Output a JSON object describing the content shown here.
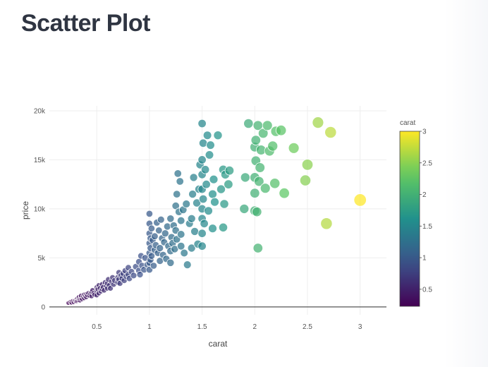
{
  "page": {
    "title": "Scatter Plot"
  },
  "chart_data": {
    "type": "scatter",
    "title": "",
    "xlabel": "carat",
    "ylabel": "price",
    "xlim": [
      0.05,
      3.25
    ],
    "ylim": [
      -800,
      20500
    ],
    "x_ticks": [
      0.5,
      1,
      1.5,
      2,
      2.5,
      3
    ],
    "x_tick_labels": [
      "0.5",
      "1",
      "1.5",
      "2",
      "2.5",
      "3"
    ],
    "y_ticks": [
      0,
      5000,
      10000,
      15000,
      20000
    ],
    "y_tick_labels": [
      "0",
      "5k",
      "10k",
      "15k",
      "20k"
    ],
    "grid": true,
    "color_by": "carat",
    "size_by": "carat",
    "colorscale": "viridis",
    "colorscale_colors": [
      "#440154",
      "#3b528b",
      "#21918c",
      "#5ec962",
      "#fde725"
    ],
    "colorbar": {
      "title": "carat",
      "range": [
        0.23,
        3
      ],
      "ticks": [
        0.5,
        1,
        1.5,
        2,
        2.5,
        3
      ],
      "tick_labels": [
        "0.5",
        "1",
        "1.5",
        "2",
        "2.5",
        "3"
      ]
    },
    "marker_opacity": 0.72,
    "marker_line_color": "#ffffff",
    "points": [
      [
        0.23,
        400
      ],
      [
        0.25,
        520
      ],
      [
        0.26,
        430
      ],
      [
        0.27,
        600
      ],
      [
        0.28,
        480
      ],
      [
        0.29,
        650
      ],
      [
        0.3,
        560
      ],
      [
        0.3,
        720
      ],
      [
        0.31,
        820
      ],
      [
        0.31,
        600
      ],
      [
        0.32,
        700
      ],
      [
        0.32,
        900
      ],
      [
        0.33,
        780
      ],
      [
        0.33,
        1000
      ],
      [
        0.34,
        650
      ],
      [
        0.34,
        880
      ],
      [
        0.35,
        950
      ],
      [
        0.35,
        1150
      ],
      [
        0.36,
        800
      ],
      [
        0.37,
        1050
      ],
      [
        0.38,
        1250
      ],
      [
        0.38,
        900
      ],
      [
        0.39,
        1100
      ],
      [
        0.4,
        1300
      ],
      [
        0.4,
        1000
      ],
      [
        0.41,
        1200
      ],
      [
        0.42,
        1400
      ],
      [
        0.43,
        1150
      ],
      [
        0.44,
        1350
      ],
      [
        0.45,
        1500
      ],
      [
        0.45,
        1100
      ],
      [
        0.46,
        1700
      ],
      [
        0.47,
        1400
      ],
      [
        0.48,
        1250
      ],
      [
        0.5,
        1600
      ],
      [
        0.5,
        2000
      ],
      [
        0.5,
        1200
      ],
      [
        0.51,
        1800
      ],
      [
        0.52,
        2200
      ],
      [
        0.52,
        1400
      ],
      [
        0.53,
        1900
      ],
      [
        0.54,
        1600
      ],
      [
        0.55,
        2300
      ],
      [
        0.55,
        1800
      ],
      [
        0.56,
        2000
      ],
      [
        0.57,
        1700
      ],
      [
        0.58,
        2500
      ],
      [
        0.59,
        2100
      ],
      [
        0.6,
        1900
      ],
      [
        0.6,
        2400
      ],
      [
        0.61,
        2800
      ],
      [
        0.62,
        2200
      ],
      [
        0.63,
        1900
      ],
      [
        0.64,
        2600
      ],
      [
        0.65,
        3000
      ],
      [
        0.66,
        2300
      ],
      [
        0.67,
        2700
      ],
      [
        0.7,
        2500
      ],
      [
        0.7,
        3000
      ],
      [
        0.71,
        2800
      ],
      [
        0.71,
        3500
      ],
      [
        0.72,
        2400
      ],
      [
        0.73,
        3200
      ],
      [
        0.74,
        2900
      ],
      [
        0.75,
        3400
      ],
      [
        0.76,
        2700
      ],
      [
        0.77,
        3700
      ],
      [
        0.78,
        3100
      ],
      [
        0.8,
        3300
      ],
      [
        0.8,
        4000
      ],
      [
        0.81,
        2900
      ],
      [
        0.83,
        3600
      ],
      [
        0.85,
        3200
      ],
      [
        0.87,
        4100
      ],
      [
        0.9,
        3700
      ],
      [
        0.9,
        4600
      ],
      [
        0.91,
        3300
      ],
      [
        0.92,
        5200
      ],
      [
        0.93,
        4200
      ],
      [
        0.95,
        3800
      ],
      [
        0.96,
        5000
      ],
      [
        0.98,
        4300
      ],
      [
        1.0,
        4500
      ],
      [
        1.0,
        5500
      ],
      [
        1.0,
        6500
      ],
      [
        1.0,
        7500
      ],
      [
        1.0,
        8500
      ],
      [
        1.0,
        9500
      ],
      [
        1.0,
        3800
      ],
      [
        1.01,
        4800
      ],
      [
        1.01,
        6000
      ],
      [
        1.01,
        7000
      ],
      [
        1.02,
        5200
      ],
      [
        1.02,
        8000
      ],
      [
        1.03,
        6800
      ],
      [
        1.04,
        4200
      ],
      [
        1.05,
        5800
      ],
      [
        1.05,
        7200
      ],
      [
        1.06,
        6300
      ],
      [
        1.07,
        8600
      ],
      [
        1.08,
        5500
      ],
      [
        1.09,
        7800
      ],
      [
        1.1,
        6000
      ],
      [
        1.1,
        4700
      ],
      [
        1.11,
        8900
      ],
      [
        1.12,
        7000
      ],
      [
        1.13,
        5300
      ],
      [
        1.14,
        6600
      ],
      [
        1.15,
        7500
      ],
      [
        1.16,
        4900
      ],
      [
        1.17,
        8200
      ],
      [
        1.18,
        6200
      ],
      [
        1.2,
        5700
      ],
      [
        1.2,
        9000
      ],
      [
        1.2,
        4500
      ],
      [
        1.21,
        7100
      ],
      [
        1.22,
        6500
      ],
      [
        1.23,
        8300
      ],
      [
        1.24,
        5900
      ],
      [
        1.25,
        7800
      ],
      [
        1.25,
        10300
      ],
      [
        1.26,
        11500
      ],
      [
        1.26,
        6900
      ],
      [
        1.27,
        13600
      ],
      [
        1.28,
        9700
      ],
      [
        1.29,
        12800
      ],
      [
        1.3,
        8800
      ],
      [
        1.3,
        6200
      ],
      [
        1.3,
        7400
      ],
      [
        1.32,
        9900
      ],
      [
        1.33,
        5500
      ],
      [
        1.35,
        10500
      ],
      [
        1.36,
        4300
      ],
      [
        1.38,
        8500
      ],
      [
        1.4,
        9000
      ],
      [
        1.4,
        6000
      ],
      [
        1.41,
        11500
      ],
      [
        1.42,
        13200
      ],
      [
        1.43,
        7700
      ],
      [
        1.45,
        10600
      ],
      [
        1.46,
        6400
      ],
      [
        1.47,
        12000
      ],
      [
        1.48,
        14500
      ],
      [
        1.5,
        10000
      ],
      [
        1.5,
        9000
      ],
      [
        1.5,
        7500
      ],
      [
        1.5,
        13500
      ],
      [
        1.5,
        15000
      ],
      [
        1.5,
        12000
      ],
      [
        1.5,
        6200
      ],
      [
        1.5,
        18700
      ],
      [
        1.51,
        11000
      ],
      [
        1.51,
        16700
      ],
      [
        1.52,
        8500
      ],
      [
        1.53,
        14000
      ],
      [
        1.54,
        12500
      ],
      [
        1.55,
        17500
      ],
      [
        1.56,
        9800
      ],
      [
        1.57,
        15500
      ],
      [
        1.58,
        16500
      ],
      [
        1.6,
        11500
      ],
      [
        1.6,
        8000
      ],
      [
        1.61,
        13000
      ],
      [
        1.62,
        10700
      ],
      [
        1.65,
        17500
      ],
      [
        1.68,
        12000
      ],
      [
        1.7,
        14000
      ],
      [
        1.7,
        8100
      ],
      [
        1.71,
        10500
      ],
      [
        1.72,
        13500
      ],
      [
        1.75,
        12500
      ],
      [
        1.76,
        13900
      ],
      [
        1.9,
        10000
      ],
      [
        1.91,
        13200
      ],
      [
        1.94,
        18700
      ],
      [
        2.0,
        9800
      ],
      [
        2.0,
        11600
      ],
      [
        2.0,
        13200
      ],
      [
        2.0,
        16300
      ],
      [
        2.01,
        14900
      ],
      [
        2.01,
        17000
      ],
      [
        2.02,
        9700
      ],
      [
        2.03,
        18500
      ],
      [
        2.03,
        6000
      ],
      [
        2.04,
        12800
      ],
      [
        2.05,
        14200
      ],
      [
        2.06,
        16000
      ],
      [
        2.08,
        17700
      ],
      [
        2.1,
        12100
      ],
      [
        2.12,
        18500
      ],
      [
        2.14,
        15900
      ],
      [
        2.17,
        16400
      ],
      [
        2.19,
        12600
      ],
      [
        2.2,
        17900
      ],
      [
        2.25,
        18000
      ],
      [
        2.28,
        11600
      ],
      [
        2.37,
        16200
      ],
      [
        2.48,
        12900
      ],
      [
        2.5,
        14500
      ],
      [
        2.6,
        18800
      ],
      [
        2.68,
        8500
      ],
      [
        2.72,
        17800
      ],
      [
        3.0,
        10900
      ]
    ]
  }
}
